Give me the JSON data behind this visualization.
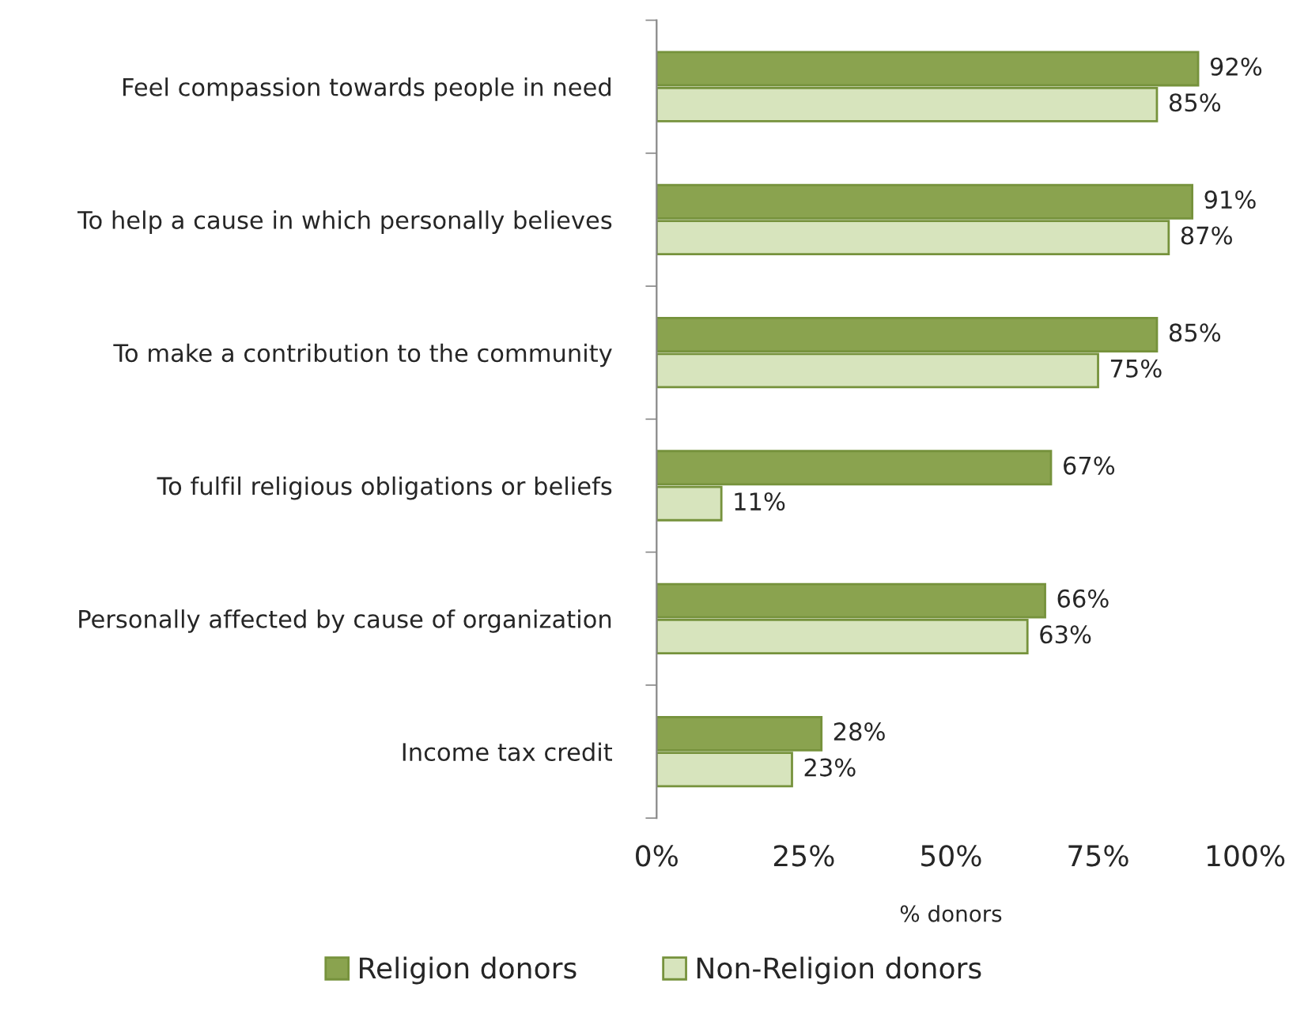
{
  "chart_data": {
    "type": "bar",
    "orientation": "horizontal",
    "xlabel": "% donors",
    "categories": [
      "Feel compassion towards people in need",
      "To help a cause in which personally believes",
      "To make a contribution to the community",
      "To fulfil religious obligations or beliefs",
      "Personally affected by cause of organization",
      "Income tax credit"
    ],
    "series": [
      {
        "name": "Religion donors",
        "color": "#8aa34f",
        "values": [
          92,
          91,
          85,
          67,
          66,
          28
        ],
        "value_labels": [
          "92%",
          "91%",
          "85%",
          "67%",
          "66%",
          "28%"
        ]
      },
      {
        "name": "Non-Religion donors",
        "color": "#d7e4bd",
        "values": [
          85,
          87,
          75,
          11,
          63,
          23
        ],
        "value_labels": [
          "85%",
          "87%",
          "75%",
          "11%",
          "63%",
          "23%"
        ]
      }
    ],
    "xlim": [
      0,
      100
    ],
    "xticks": [
      {
        "value": 0,
        "label": "0%"
      },
      {
        "value": 25,
        "label": "25%"
      },
      {
        "value": 50,
        "label": "50%"
      },
      {
        "value": 75,
        "label": "75%"
      },
      {
        "value": 100,
        "label": "100%"
      }
    ],
    "grid": false,
    "legend": "bottom"
  }
}
